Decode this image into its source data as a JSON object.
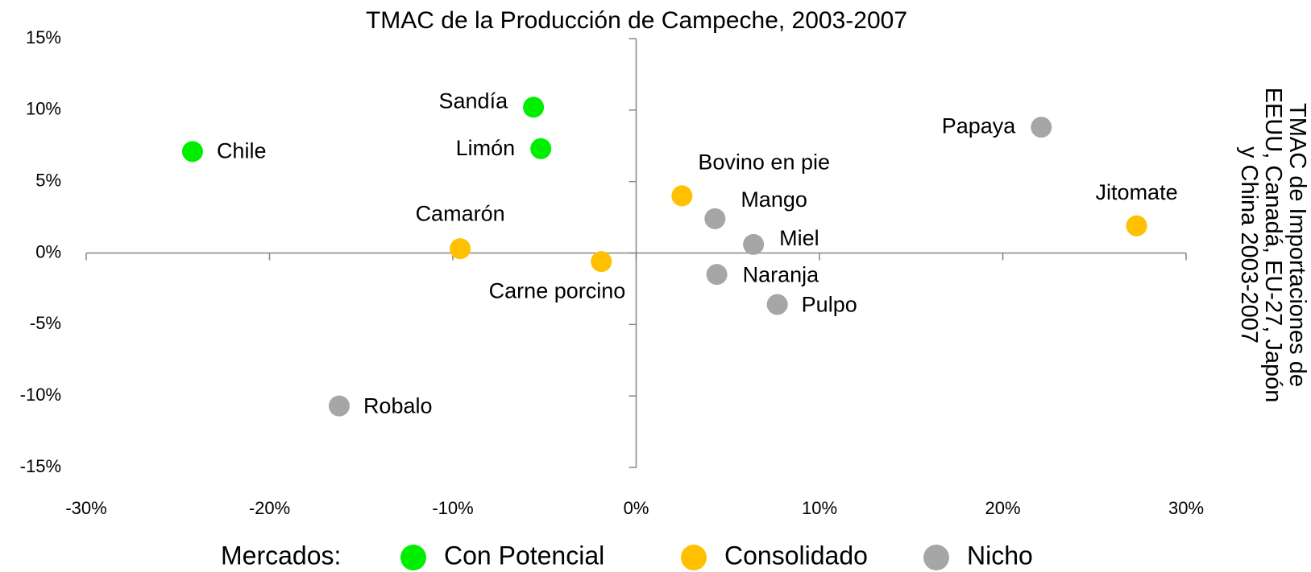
{
  "chart_data": {
    "type": "scatter",
    "title": "TMAC de la Producción de Campeche, 2003-2007",
    "y_label": [
      "TMAC de Importaciones de",
      "EEUU, Canadá, EU-27, Japón",
      "y China 2003-2007"
    ],
    "legend_title": "Mercados:",
    "legend": "bottom",
    "xlim": [
      -30,
      30
    ],
    "ylim": [
      -15,
      15
    ],
    "xticks": [
      {
        "value": -30,
        "label": "-30%"
      },
      {
        "value": -20,
        "label": "-20%"
      },
      {
        "value": -10,
        "label": "-10%"
      },
      {
        "value": 0,
        "label": "0%"
      },
      {
        "value": 10,
        "label": "10%"
      },
      {
        "value": 20,
        "label": "20%"
      },
      {
        "value": 30,
        "label": "30%"
      }
    ],
    "yticks": [
      {
        "value": -15,
        "label": "-15%"
      },
      {
        "value": -10,
        "label": "-10%"
      },
      {
        "value": -5,
        "label": "-5%"
      },
      {
        "value": 0,
        "label": "0%"
      },
      {
        "value": 5,
        "label": "5%"
      },
      {
        "value": 10,
        "label": "10%"
      },
      {
        "value": 15,
        "label": "15%"
      }
    ],
    "series": [
      {
        "name": "Con Potencial",
        "color": "#00ee00",
        "labels": [
          "Chile",
          "Sandía",
          "Limón"
        ],
        "x": [
          -24.2,
          -5.6,
          -5.2
        ],
        "values": [
          7.1,
          10.2,
          7.3
        ]
      },
      {
        "name": "Consolidado",
        "color": "#ffc000",
        "labels": [
          "Camarón",
          "Carne porcino",
          "Bovino en pie",
          "Jitomate"
        ],
        "x": [
          -9.6,
          -1.9,
          2.5,
          27.3
        ],
        "values": [
          0.3,
          -0.6,
          4.0,
          1.9
        ]
      },
      {
        "name": "Nicho",
        "color": "#a6a6a6",
        "labels": [
          "Papaya",
          "Mango",
          "Miel",
          "Naranja",
          "Pulpo",
          "Robalo"
        ],
        "x": [
          22.1,
          4.3,
          6.4,
          4.4,
          7.7,
          -16.2
        ],
        "values": [
          8.8,
          2.4,
          0.6,
          -1.5,
          -3.6,
          -10.7
        ]
      }
    ]
  }
}
